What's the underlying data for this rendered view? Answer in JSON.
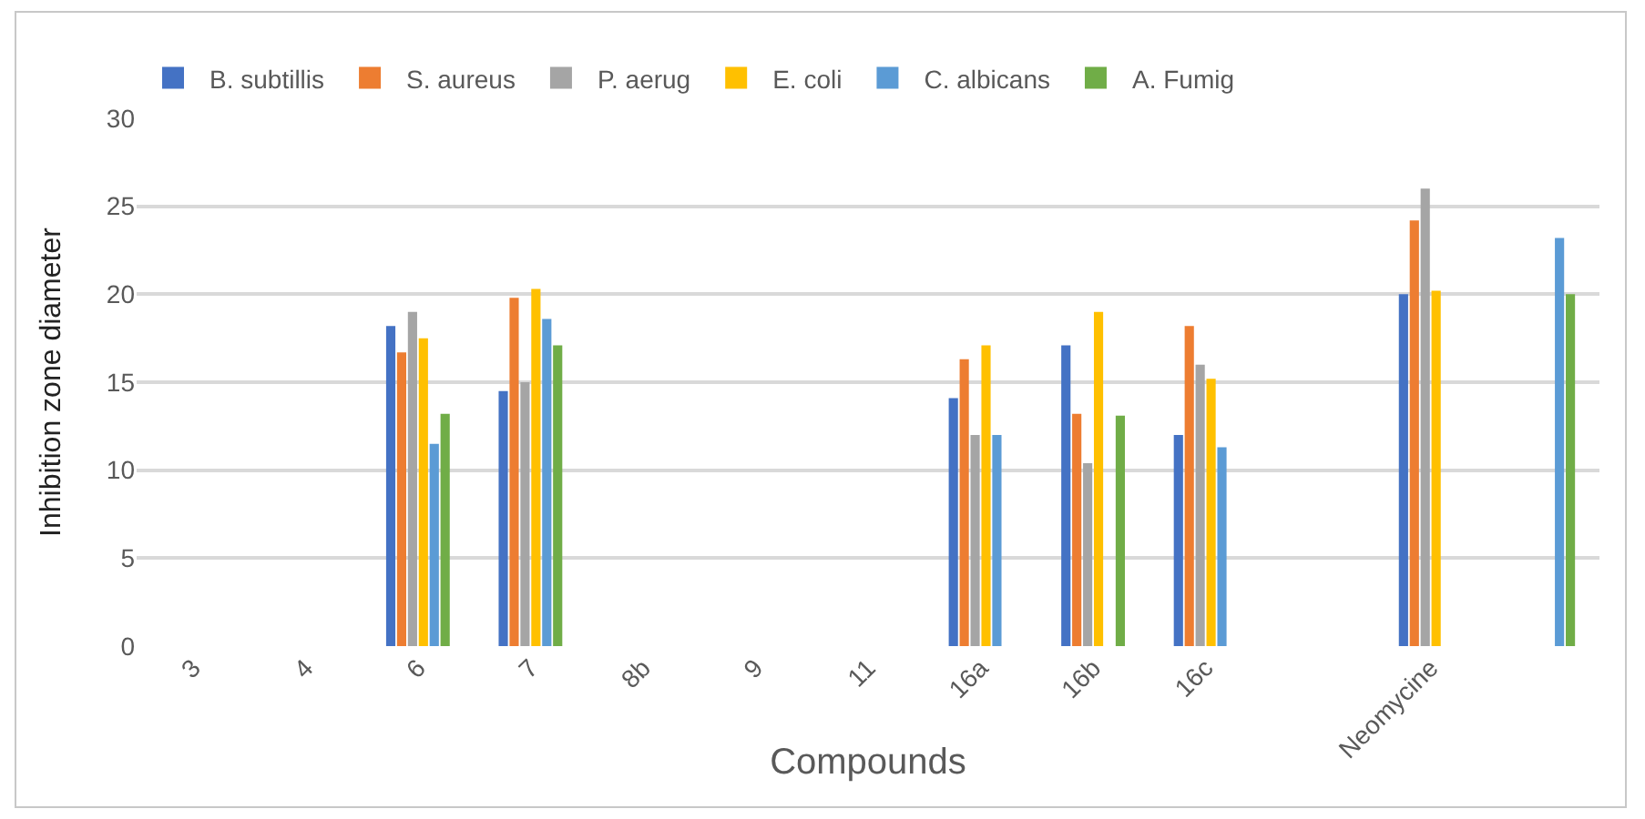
{
  "chart_data": {
    "type": "bar",
    "xlabel": "Compounds",
    "ylabel": "Inhibition zone diameter",
    "categories": [
      "3",
      "4",
      "6",
      "7",
      "8b",
      "9",
      "11",
      "16a",
      "16b",
      "16c",
      null,
      "Neomycine",
      null
    ],
    "series": [
      {
        "name": "B. subtillis",
        "color": "#4472c4",
        "values": [
          null,
          null,
          18.2,
          14.5,
          null,
          null,
          null,
          14.1,
          17.1,
          12,
          null,
          20,
          null
        ]
      },
      {
        "name": "S. aureus",
        "color": "#ed7d31",
        "values": [
          null,
          null,
          16.7,
          19.8,
          null,
          null,
          null,
          16.3,
          13.2,
          18.2,
          null,
          24.2,
          null
        ]
      },
      {
        "name": "P. aerug",
        "color": "#a5a5a5",
        "values": [
          null,
          null,
          19,
          15,
          null,
          null,
          null,
          12,
          10.4,
          16,
          null,
          26,
          null
        ]
      },
      {
        "name": "E. coli",
        "color": "#ffc000",
        "values": [
          null,
          null,
          17.5,
          20.3,
          null,
          null,
          null,
          17.1,
          19,
          15.2,
          null,
          20.2,
          null
        ]
      },
      {
        "name": "C. albicans",
        "color": "#5b9bd5",
        "values": [
          null,
          null,
          11.5,
          18.6,
          null,
          null,
          null,
          12,
          null,
          11.3,
          null,
          null,
          23.2
        ]
      },
      {
        "name": "A. Fumig",
        "color": "#70ad47",
        "values": [
          null,
          null,
          13.2,
          17.1,
          null,
          null,
          null,
          null,
          13.1,
          null,
          null,
          null,
          20
        ]
      }
    ],
    "ylim": [
      0,
      30
    ],
    "yticks": [
      0,
      5,
      10,
      15,
      20,
      25,
      30
    ],
    "grid": "y",
    "legend": "top left"
  }
}
